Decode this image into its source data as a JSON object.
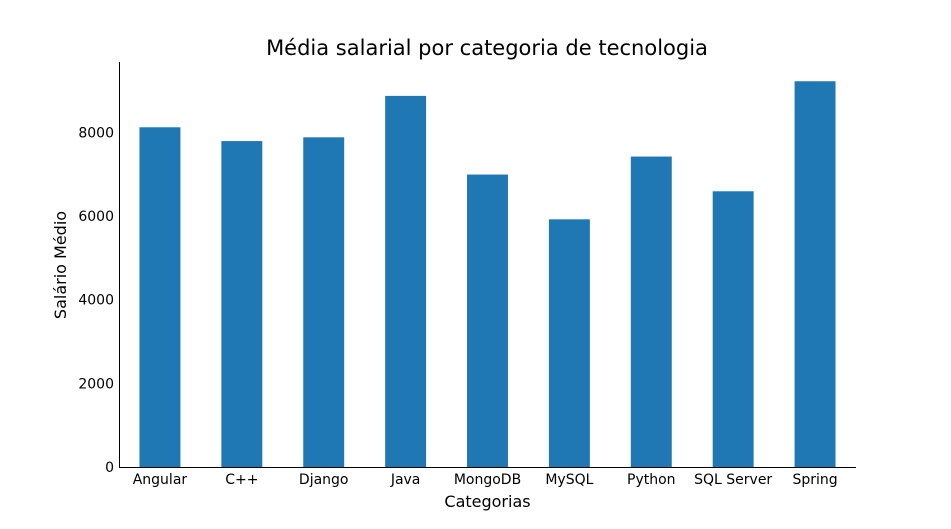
{
  "chart_data": {
    "type": "bar",
    "title": "Média salarial por categoria de tecnologia",
    "xlabel": "Categorias",
    "ylabel": "Salário Médio",
    "categories": [
      "Angular",
      "C++",
      "Django",
      "Java",
      "MongoDB",
      "MySQL",
      "Python",
      "SQL Server",
      "Spring"
    ],
    "values": [
      8120,
      7790,
      7880,
      8870,
      6990,
      5920,
      7420,
      6590,
      9220
    ],
    "ylim": [
      0,
      9680
    ],
    "yticks": [
      0,
      2000,
      4000,
      6000,
      8000
    ],
    "grid": false,
    "bar_color": "#1f77b4"
  }
}
